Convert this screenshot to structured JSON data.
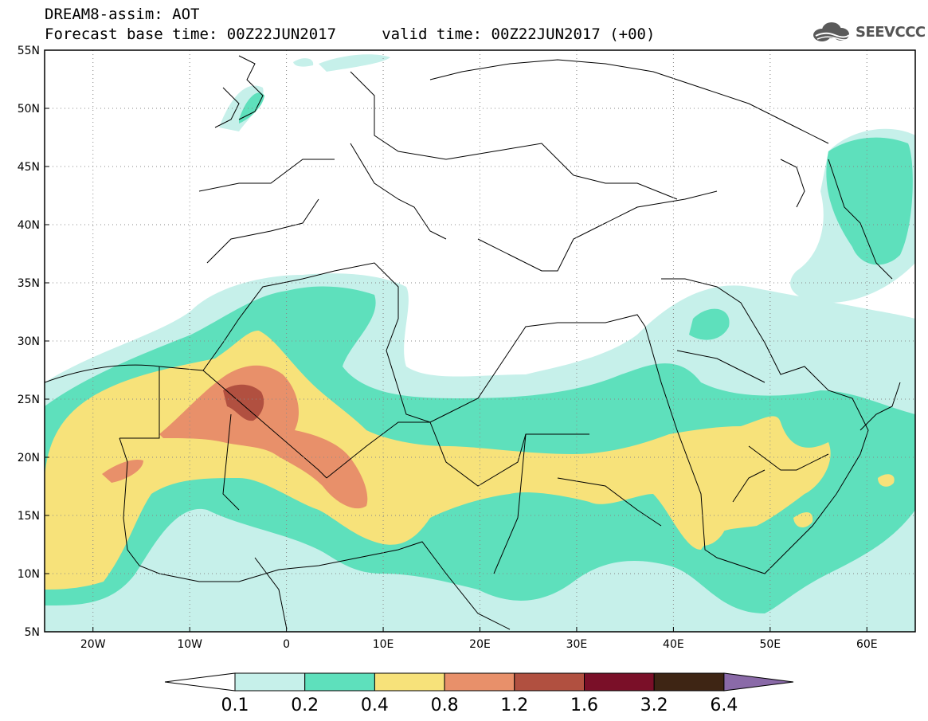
{
  "header": {
    "line1": "DREAM8-assim: AOT",
    "line2": "Forecast base time: 00Z22JUN2017     valid time: 00Z22JUN2017 (+00)",
    "logo_text": "SEEVCCC"
  },
  "map": {
    "lon_range": [
      -25,
      65
    ],
    "lat_range": [
      5,
      55
    ],
    "lat_labels": [
      "5N",
      "10N",
      "15N",
      "20N",
      "25N",
      "30N",
      "35N",
      "40N",
      "45N",
      "50N",
      "55N"
    ],
    "lon_labels": [
      "20W",
      "10W",
      "0",
      "10E",
      "20E",
      "30E",
      "40E",
      "50E",
      "60E"
    ],
    "gridlines": "dotted"
  },
  "colorbar": {
    "labels": [
      "0.1",
      "0.2",
      "0.4",
      "0.8",
      "1.2",
      "1.6",
      "3.2",
      "6.4"
    ],
    "colors": [
      "#ffffff",
      "#c6f0ea",
      "#5ee0bc",
      "#f7e27a",
      "#e8906a",
      "#b15040",
      "#7a0f28",
      "#3e2514",
      "#8a6aa8"
    ]
  },
  "aot_colors": {
    "lt": "#c6f0ea",
    "gr": "#5ee0bc",
    "ye": "#f7e27a",
    "or": "#e8906a",
    "br": "#b15040"
  }
}
